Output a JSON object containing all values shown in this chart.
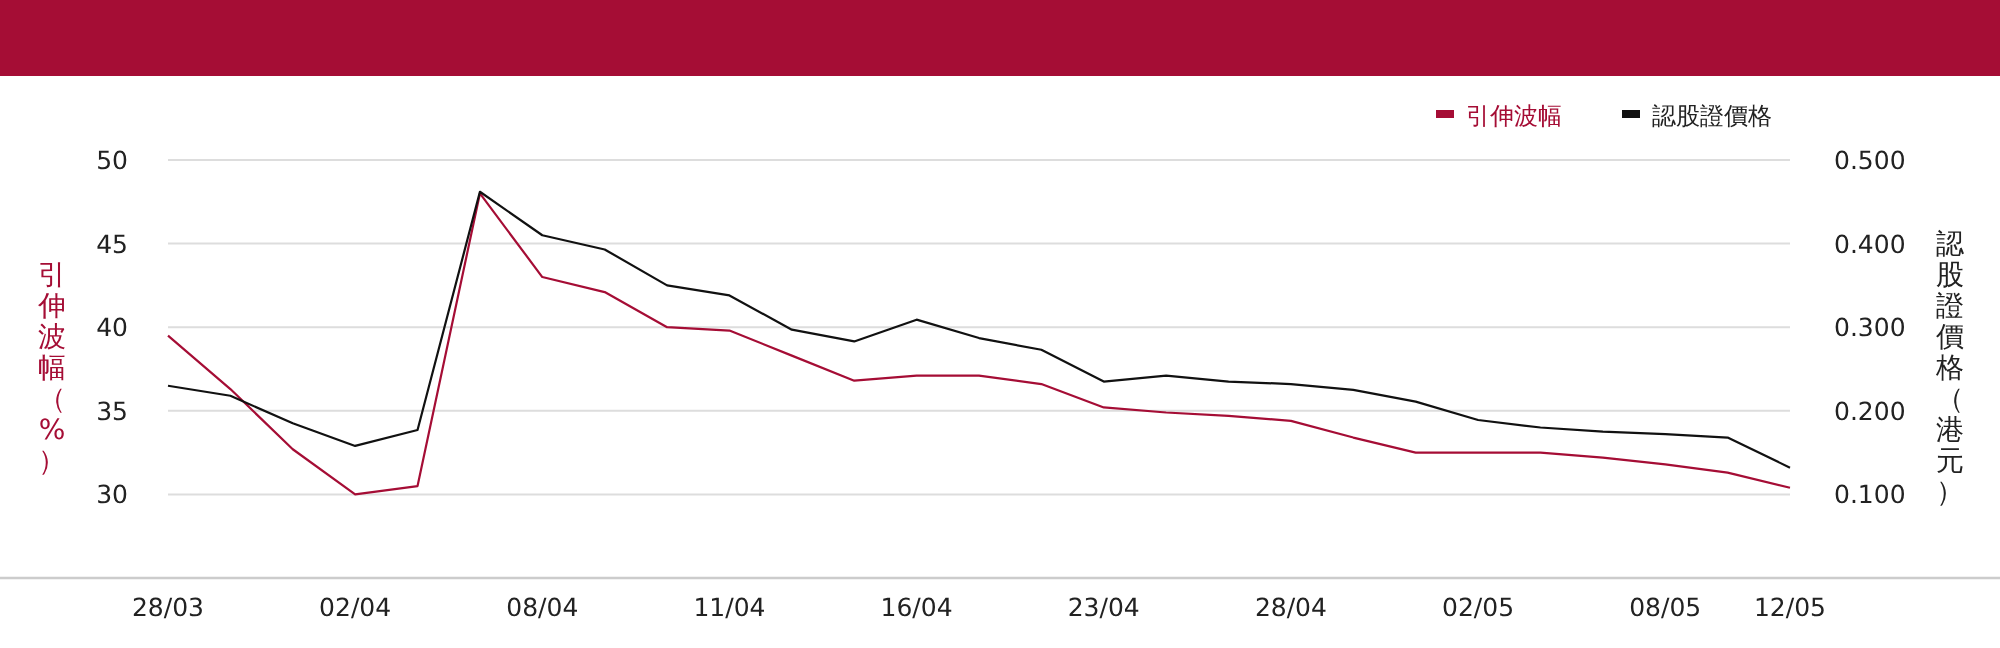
{
  "chart_data": {
    "type": "line",
    "categories": [
      "28/03",
      null,
      null,
      "02/04",
      null,
      null,
      "08/04",
      null,
      null,
      "11/04",
      null,
      null,
      "16/04",
      null,
      null,
      "23/04",
      null,
      null,
      "28/04",
      null,
      null,
      "02/05",
      null,
      null,
      "08/05",
      null,
      "12/05"
    ],
    "series": [
      {
        "name": "引伸波幅",
        "color": "#a50d35",
        "axis": "y",
        "values": [
          39.5,
          36.3,
          32.7,
          30.0,
          30.5,
          48.0,
          43.0,
          42.1,
          40.0,
          39.8,
          38.3,
          36.8,
          37.1,
          37.1,
          36.6,
          35.2,
          34.9,
          34.7,
          34.4,
          33.4,
          32.5,
          32.5,
          32.5,
          32.2,
          31.8,
          31.3,
          30.4
        ]
      },
      {
        "name": "認股證價格",
        "color": "#111111",
        "axis": "y2",
        "values": [
          0.23,
          0.218,
          0.185,
          0.158,
          0.177,
          0.462,
          0.41,
          0.393,
          0.35,
          0.338,
          0.297,
          0.283,
          0.309,
          0.287,
          0.273,
          0.235,
          0.242,
          0.235,
          0.232,
          0.225,
          0.211,
          0.189,
          0.18,
          0.175,
          0.172,
          0.168,
          0.132
        ]
      }
    ],
    "ylabel": "引伸波幅（%）",
    "y2label": "認股證價格（港元）",
    "ylim": [
      25,
      50
    ],
    "yticks": [
      30,
      35,
      40,
      45,
      50
    ],
    "y2lim": [
      0,
      0.5
    ],
    "y2ticks": [
      {
        "value": 0.1,
        "label": "0.100"
      },
      {
        "value": 0.2,
        "label": "0.200"
      },
      {
        "value": 0.3,
        "label": "0.300"
      },
      {
        "value": 0.4,
        "label": "0.400"
      },
      {
        "value": 0.5,
        "label": "0.500"
      }
    ],
    "grid": "y",
    "legend": "top right",
    "marker": "none",
    "line_style": "solid"
  }
}
